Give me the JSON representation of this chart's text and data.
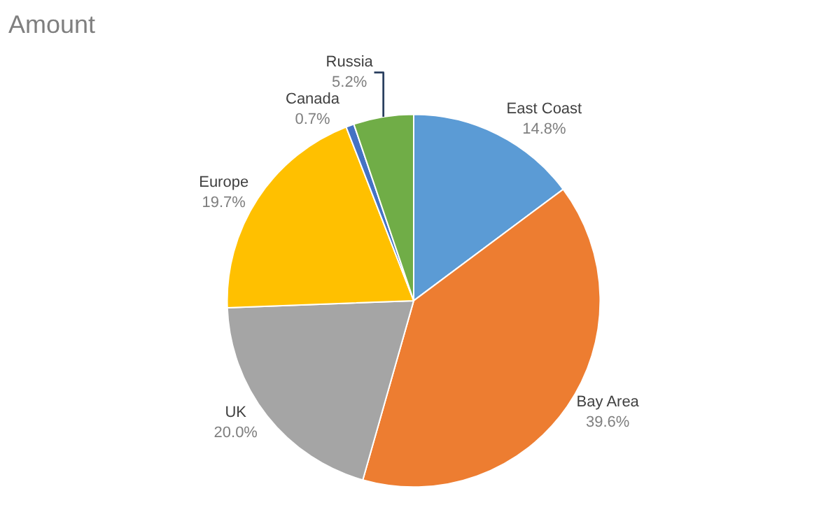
{
  "chart_data": {
    "type": "pie",
    "title": "Amount",
    "categories": [
      "East Coast",
      "Bay Area",
      "UK",
      "Europe",
      "Canada",
      "Russia"
    ],
    "values": [
      14.8,
      39.6,
      20.0,
      19.7,
      0.7,
      5.2
    ],
    "colors": [
      "#5b9bd5",
      "#ed7d31",
      "#a5a5a5",
      "#ffc000",
      "#4472c4",
      "#70ad47"
    ],
    "value_labels": [
      "14.8%",
      "39.6%",
      "20.0%",
      "19.7%",
      "0.7%",
      "5.2%"
    ],
    "legend": false
  }
}
